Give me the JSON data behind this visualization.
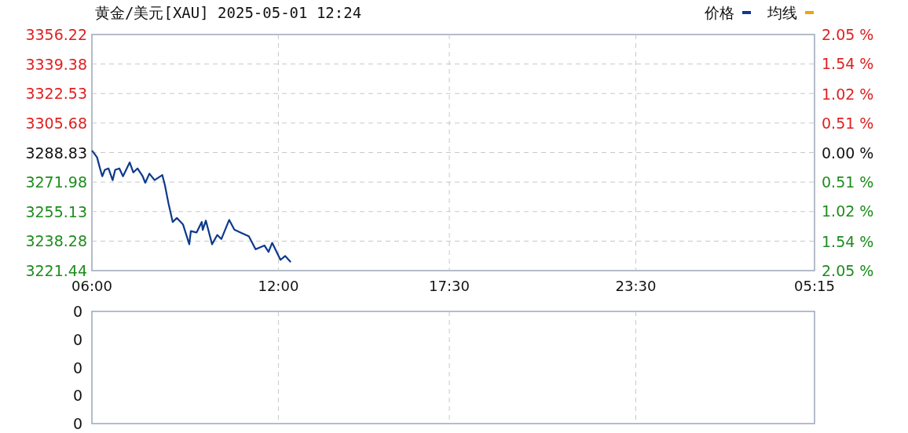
{
  "chart_data": [
    {
      "type": "line",
      "title": "黄金/美元[XAU] 2025-05-01 12:24",
      "legend": "top right",
      "grid": true,
      "xlim": [
        "2025-05-01T06:00",
        "2025-05-02T05:15"
      ],
      "xticks": [
        {
          "value": "2025-05-01T06:00",
          "label": "06:00"
        },
        {
          "value": "2025-05-01T12:00",
          "label": "12:00"
        },
        {
          "value": "2025-05-01T17:30",
          "label": "17:30"
        },
        {
          "value": "2025-05-01T23:30",
          "label": "23:30"
        },
        {
          "value": "2025-05-02T05:15",
          "label": "05:15"
        }
      ],
      "ylim": [
        3221.44,
        3356.22
      ],
      "yticks": [
        3221.44,
        3238.28,
        3255.13,
        3271.98,
        3288.83,
        3305.68,
        3322.53,
        3339.38,
        3356.22
      ],
      "y2lim": [
        -2.05,
        2.05
      ],
      "y2ticks": [
        {
          "value": -2.05,
          "label": "2.05 %"
        },
        {
          "value": -1.54,
          "label": "1.54 %"
        },
        {
          "value": -1.02,
          "label": "1.02 %"
        },
        {
          "value": -0.51,
          "label": "0.51 %"
        },
        {
          "value": 0,
          "label": "0.00 %"
        },
        {
          "value": 0.51,
          "label": "0.51 %"
        },
        {
          "value": 1.02,
          "label": "1.02 %"
        },
        {
          "value": 1.54,
          "label": "1.54 %"
        },
        {
          "value": 2.05,
          "label": "2.05 %"
        }
      ],
      "series": [
        {
          "name": "价格",
          "color": "#0d3a8c",
          "x": [
            "2025-05-01T06:01",
            "2025-05-01T06:10",
            "2025-05-01T06:15",
            "2025-05-01T06:20",
            "2025-05-01T06:25",
            "2025-05-01T06:32",
            "2025-05-01T06:40",
            "2025-05-01T06:45",
            "2025-05-01T06:53",
            "2025-05-01T07:00",
            "2025-05-01T07:13",
            "2025-05-01T07:20",
            "2025-05-01T07:28",
            "2025-05-01T07:38",
            "2025-05-01T07:43",
            "2025-05-01T07:51",
            "2025-05-01T08:01",
            "2025-05-01T08:16",
            "2025-05-01T08:21",
            "2025-05-01T08:28",
            "2025-05-01T08:36",
            "2025-05-01T08:44",
            "2025-05-01T08:56",
            "2025-05-01T09:08",
            "2025-05-01T09:11",
            "2025-05-01T09:22",
            "2025-05-01T09:32",
            "2025-05-01T09:34",
            "2025-05-01T09:40",
            "2025-05-01T09:52",
            "2025-05-01T10:02",
            "2025-05-01T10:10",
            "2025-05-01T10:25",
            "2025-05-01T10:35",
            "2025-05-01T10:47",
            "2025-05-01T11:03",
            "2025-05-01T11:16",
            "2025-05-01T11:33",
            "2025-05-01T11:41",
            "2025-05-01T11:48",
            "2025-05-01T12:04",
            "2025-05-01T12:13",
            "2025-05-01T12:23"
          ],
          "values": [
            3289.7,
            3286.1,
            3280.5,
            3275.3,
            3279.0,
            3279.8,
            3273.1,
            3279.0,
            3279.8,
            3275.3,
            3283.2,
            3277.5,
            3279.8,
            3275.3,
            3271.6,
            3276.8,
            3273.1,
            3276.0,
            3270.1,
            3259.6,
            3249.2,
            3251.5,
            3247.7,
            3236.5,
            3244.0,
            3243.2,
            3249.2,
            3244.7,
            3250.0,
            3236.5,
            3241.8,
            3239.5,
            3250.4,
            3244.8,
            3243.2,
            3241.0,
            3233.6,
            3235.8,
            3232.1,
            3237.3,
            3227.6,
            3229.8,
            3226.6
          ]
        },
        {
          "name": "均线",
          "color": "#f0a30a"
        }
      ]
    },
    {
      "type": "other",
      "annotations": [
        "0",
        "0",
        "0",
        "0",
        "0"
      ]
    }
  ]
}
